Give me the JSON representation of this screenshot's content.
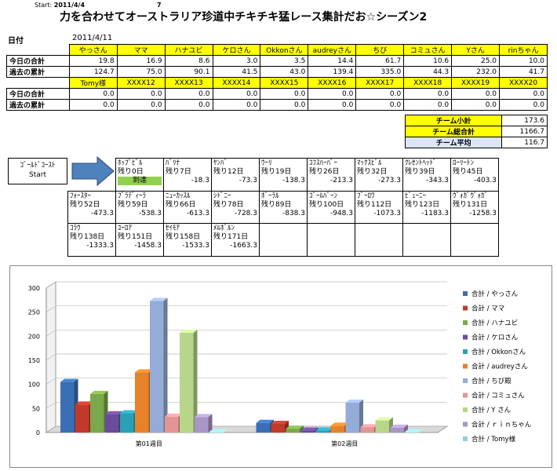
{
  "header": {
    "start_label": "Start:",
    "start_date": "2011/4/4",
    "day_count": "7",
    "title": "力を合わせてオーストラリア珍道中チキチキ猛レース集計だお☆シーズン2",
    "date_label": "日付",
    "date_value": "2011/4/11"
  },
  "table1": {
    "names": [
      "やっさん",
      "ママ",
      "ハナユビ",
      "ケロさん",
      "Okkonさん",
      "audreyさん",
      "ちび",
      "コミュさん",
      "Yさん",
      "rinちゃん"
    ],
    "today_label": "今日の合計",
    "past_label": "過去の累計",
    "today": [
      "19.8",
      "16.9",
      "8.6",
      "3.0",
      "3.5",
      "14.4",
      "61.7",
      "10.6",
      "25.0",
      "10.0"
    ],
    "past": [
      "124.7",
      "75.0",
      "90.1",
      "41.5",
      "43.0",
      "139.4",
      "335.0",
      "44.3",
      "232.0",
      "41.7"
    ]
  },
  "table2": {
    "names": [
      "Tomy様",
      "XXXX12",
      "XXXX13",
      "XXXX14",
      "XXXX15",
      "XXXX16",
      "XXXX17",
      "XXXX18",
      "XXXX19",
      "XXXX20"
    ],
    "today_label": "今日の合計",
    "past_label": "過去の累計",
    "today": [
      "0.0",
      "0.0",
      "0.0",
      "0.0",
      "0.0",
      "0.0",
      "0.0",
      "0.0",
      "0.0",
      "0.0"
    ],
    "past": [
      "0.0",
      "0.0",
      "0.0",
      "0.0",
      "0.0",
      "0.0",
      "0.0",
      "0.0",
      "0.0",
      "0.0"
    ]
  },
  "team": {
    "subtotal_label": "チーム小計",
    "subtotal": "173.6",
    "total_label": "チーム総合計",
    "total": "1166.7",
    "avg_label": "チーム平均",
    "avg": "116.7"
  },
  "route": {
    "start_line1": "ｺﾞｰﾙﾄﾞｺｰｽﾄ",
    "start_line2": "Start",
    "row1": [
      {
        "name": "ﾎｯﾌﾟﾋﾞﾙ",
        "rem": "残り0日",
        "val": "到達"
      },
      {
        "name": "ﾊﾞﾘﾅ",
        "rem": "残り7日",
        "val": "-18.3"
      },
      {
        "name": "ﾔﾝﾊﾞ",
        "rem": "残り12日",
        "val": "-73.3"
      },
      {
        "name": "ｳｰﾘ",
        "rem": "残り19日",
        "val": "-138.3"
      },
      {
        "name": "ｺﾌｽﾊｰﾊﾞｰ",
        "rem": "残り26日",
        "val": "-213.3"
      },
      {
        "name": "ﾏｯｸｽﾋﾞﾙ",
        "rem": "残り32日",
        "val": "-273.3"
      },
      {
        "name": "ｸﾚｾﾝﾄﾍｯﾄﾞ",
        "rem": "残り39日",
        "val": "-343.3"
      },
      {
        "name": "ﾛｰﾘｰﾄﾝ",
        "rem": "残り45日",
        "val": "-403.3"
      }
    ],
    "row2": [
      {
        "name": "ﾌｫｰｽﾀｰ",
        "rem": "残り52日",
        "val": "-473.3"
      },
      {
        "name": "ﾌﾞﾗﾃﾞｨｰﾗ",
        "rem": "残り59日",
        "val": "-538.3"
      },
      {
        "name": "ﾆｭｰｶｯｽﾙ",
        "rem": "残り66日",
        "val": "-613.3"
      },
      {
        "name": "ｼﾄﾞﾆｰ",
        "rem": "残り78日",
        "val": "-728.3"
      },
      {
        "name": "ﾎﾞｰﾗﾙ",
        "rem": "残り89日",
        "val": "-838.3"
      },
      {
        "name": "ｺﾞｰﾙﾊﾞｰﾝ",
        "rem": "残り100日",
        "val": "-948.3"
      },
      {
        "name": "ﾌﾞｰﾛﾜ",
        "rem": "残り112日",
        "val": "-1073.3"
      },
      {
        "name": "ﾋﾞｭｰﾆｰ",
        "rem": "残り123日",
        "val": "-1183.3"
      },
      {
        "name": "ｳﾞｫｶﾞｳﾞｫｶﾞ",
        "rem": "残り131日",
        "val": "-1258.3"
      }
    ],
    "row3": [
      {
        "name": "ｺﾗｳ",
        "rem": "残り138日",
        "val": "-1333.3"
      },
      {
        "name": "ﾕｰﾛｱ",
        "rem": "残り151日",
        "val": "-1458.3"
      },
      {
        "name": "ｾｲﾓｱ",
        "rem": "残り158日",
        "val": "-1533.3"
      },
      {
        "name": "ﾒﾙﾎﾞﾙﾝ",
        "rem": "残り171日",
        "val": "-1663.3"
      }
    ]
  },
  "chart_data": {
    "type": "bar",
    "categories": [
      "第01週目",
      "第02週目"
    ],
    "ylim": [
      0,
      300
    ],
    "yticks": [
      "0",
      "50",
      "100",
      "150",
      "200",
      "250",
      "300"
    ],
    "legend_position": "right",
    "grid": true,
    "series": [
      {
        "name": "合計 / やっさん",
        "values": [
          105,
          20
        ],
        "color": "#3a6fb5"
      },
      {
        "name": "合計 / ママ",
        "values": [
          58,
          18
        ],
        "color": "#c0392b"
      },
      {
        "name": "合計 / ハナユビ",
        "values": [
          80,
          8
        ],
        "color": "#7ba84a"
      },
      {
        "name": "合計 / ケロさん",
        "values": [
          38,
          4
        ],
        "color": "#6b4c9a"
      },
      {
        "name": "合計 / Okkonさん",
        "values": [
          40,
          4
        ],
        "color": "#2aa0b5"
      },
      {
        "name": "合計 / audreyさん",
        "values": [
          125,
          14
        ],
        "color": "#e8822a"
      },
      {
        "name": "合計 / ちび殿",
        "values": [
          273,
          62
        ],
        "color": "#95acd8"
      },
      {
        "name": "合計 / コミュさん",
        "values": [
          33,
          11
        ],
        "color": "#e39494"
      },
      {
        "name": "合計 / Y さん",
        "values": [
          207,
          25
        ],
        "color": "#b8d68a"
      },
      {
        "name": "合計 / ｒｉｎちゃん",
        "values": [
          32,
          10
        ],
        "color": "#a896c4"
      },
      {
        "name": "合計 / Tomy様",
        "values": [
          0,
          0
        ],
        "color": "#8fd0de"
      }
    ]
  }
}
